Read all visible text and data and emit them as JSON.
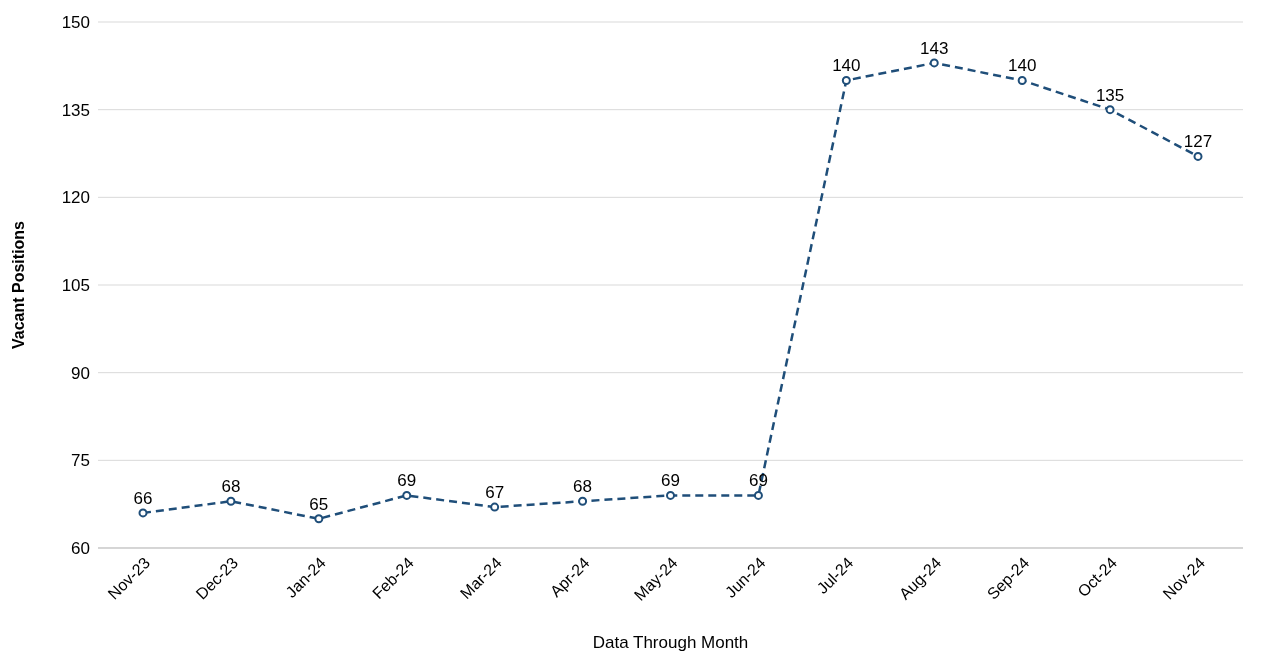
{
  "chart_data": {
    "type": "line",
    "xlabel": "Data Through Month",
    "ylabel": "Vacant Positions",
    "categories": [
      "Nov-23",
      "Dec-23",
      "Jan-24",
      "Feb-24",
      "Mar-24",
      "Apr-24",
      "May-24",
      "Jun-24",
      "Jul-24",
      "Aug-24",
      "Sep-24",
      "Oct-24",
      "Nov-24"
    ],
    "series": [
      {
        "color": "#1f4e79",
        "values": [
          66,
          68,
          65,
          69,
          67,
          68,
          69,
          69,
          140,
          143,
          140,
          135,
          127
        ]
      }
    ],
    "ylim": [
      60,
      150
    ],
    "yticks": [
      60,
      75,
      90,
      105,
      120,
      135,
      150
    ],
    "grid": "y",
    "marker": "circle",
    "line_style": "dashed",
    "data_labels": true
  }
}
